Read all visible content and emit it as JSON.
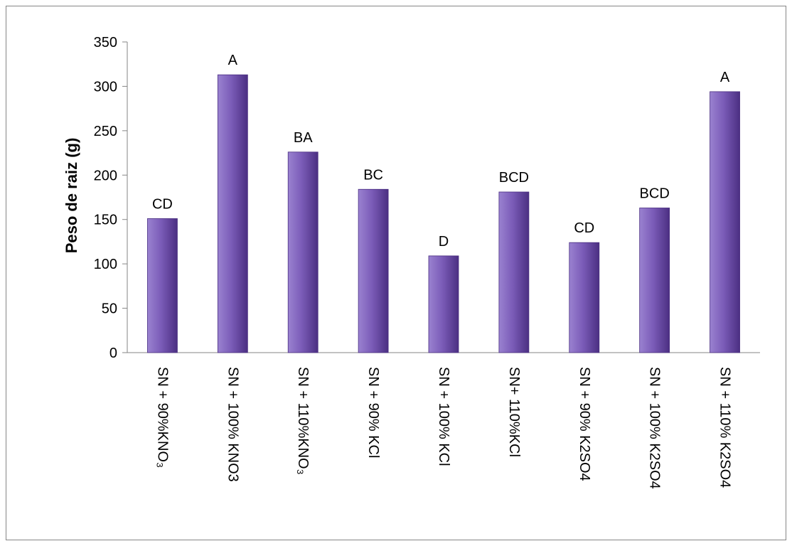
{
  "colors": {
    "bar_light": "#9a82d0",
    "bar_mid": "#7b5cb8",
    "bar_dark": "#4b2f82",
    "axis": "#868686"
  },
  "chart_data": {
    "type": "bar",
    "title": "",
    "xlabel": "",
    "ylabel": "Peso de raiz (g)",
    "ylim": [
      0,
      350
    ],
    "yticks": [
      0,
      50,
      100,
      150,
      200,
      250,
      300,
      350
    ],
    "grid": false,
    "legend": "none",
    "categories": [
      "SN + 90%KNO₃",
      "SN + 100% KNO3",
      "SN + 110%KNO₃",
      "SN + 90% KCl",
      "SN + 100% KCl",
      "SN+ 110%KCl",
      "SN + 90% K2SO4",
      "SN + 100% K2SO4",
      "SN + 110% K2SO4"
    ],
    "values": [
      151,
      313,
      226,
      184,
      109,
      181,
      124,
      163,
      294
    ],
    "value_labels": [
      "CD",
      "A",
      "BA",
      "BC",
      "D",
      "BCD",
      "CD",
      "BCD",
      "A"
    ]
  }
}
